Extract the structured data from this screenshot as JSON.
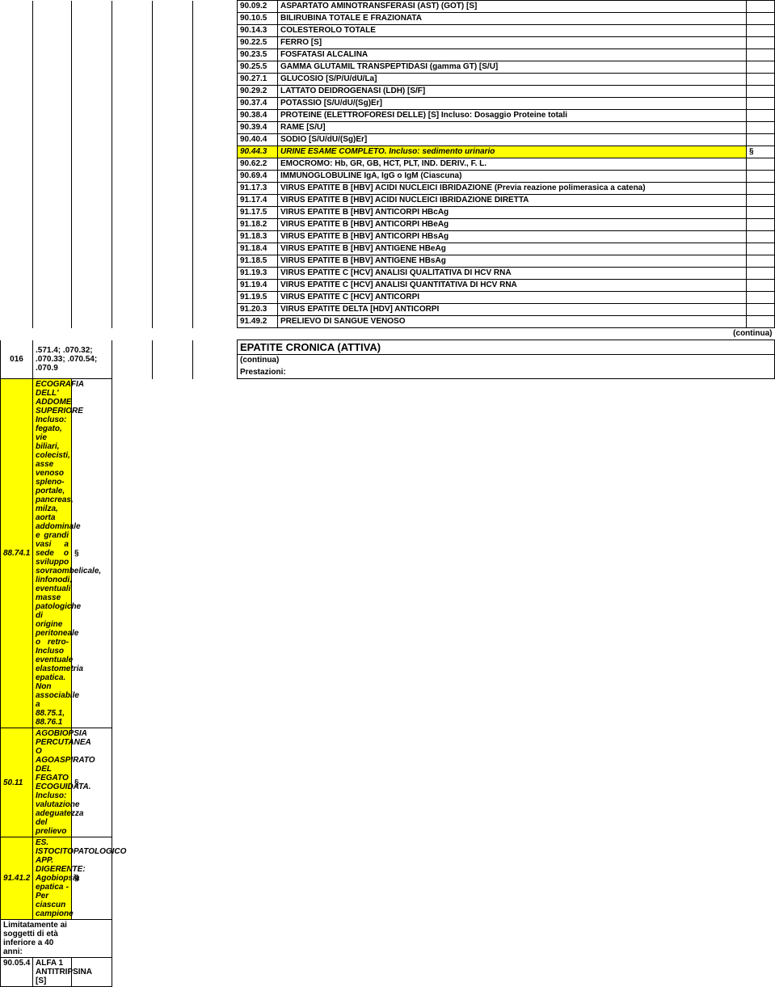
{
  "left": {
    "code016": "016",
    "refs": ".571.4; .070.32; .070.33; .070.54; .070.9"
  },
  "rows_top": [
    {
      "code": "90.09.2",
      "desc": "ASPARTATO AMINOTRANSFERASI (AST) (GOT) [S]",
      "hl": false,
      "it": false,
      "sec": ""
    },
    {
      "code": "90.10.5",
      "desc": "BILIRUBINA TOTALE E FRAZIONATA",
      "hl": false,
      "it": false,
      "sec": ""
    },
    {
      "code": "90.14.3",
      "desc": "COLESTEROLO TOTALE",
      "hl": false,
      "it": false,
      "sec": ""
    },
    {
      "code": "90.22.5",
      "desc": "FERRO [S]",
      "hl": false,
      "it": false,
      "sec": ""
    },
    {
      "code": "90.23.5",
      "desc": "FOSFATASI ALCALINA",
      "hl": false,
      "it": false,
      "sec": ""
    },
    {
      "code": "90.25.5",
      "desc": "GAMMA GLUTAMIL TRANSPEPTIDASI (gamma GT) [S/U]",
      "hl": false,
      "it": false,
      "sec": ""
    },
    {
      "code": "90.27.1",
      "desc": "GLUCOSIO [S/P/U/dU/La]",
      "hl": false,
      "it": false,
      "sec": ""
    },
    {
      "code": "90.29.2",
      "desc": "LATTATO DEIDROGENASI (LDH) [S/F]",
      "hl": false,
      "it": false,
      "sec": ""
    },
    {
      "code": "90.37.4",
      "desc": "POTASSIO [S/U/dU/(Sg)Er]",
      "hl": false,
      "it": false,
      "sec": ""
    },
    {
      "code": "90.38.4",
      "desc": "PROTEINE (ELETTROFORESI DELLE) [S] Incluso: Dosaggio Proteine totali",
      "hl": false,
      "it": false,
      "sec": ""
    },
    {
      "code": "90.39.4",
      "desc": "RAME [S/U]",
      "hl": false,
      "it": false,
      "sec": ""
    },
    {
      "code": "90.40.4",
      "desc": "SODIO [S/U/dU/(Sg)Er]",
      "hl": false,
      "it": false,
      "sec": ""
    },
    {
      "code": "90.44.3",
      "desc": "URINE ESAME COMPLETO. Incluso: sedimento urinario",
      "hl": true,
      "it": true,
      "sec": "§"
    },
    {
      "code": "90.62.2",
      "desc": "EMOCROMO:  Hb, GR, GB, HCT, PLT, IND. DERIV., F. L.",
      "hl": false,
      "it": false,
      "sec": ""
    },
    {
      "code": "90.69.4",
      "desc": "IMMUNOGLOBULINE IgA, IgG o IgM (Ciascuna)",
      "hl": false,
      "it": false,
      "sec": ""
    },
    {
      "code": "91.17.3",
      "desc": "VIRUS EPATITE B [HBV] ACIDI NUCLEICI IBRIDAZIONE (Previa reazione polimerasica a catena)",
      "hl": false,
      "it": false,
      "sec": ""
    },
    {
      "code": "91.17.4",
      "desc": "VIRUS EPATITE B [HBV] ACIDI NUCLEICI IBRIDAZIONE DIRETTA",
      "hl": false,
      "it": false,
      "sec": ""
    },
    {
      "code": "91.17.5",
      "desc": "VIRUS EPATITE B [HBV] ANTICORPI HBcAg",
      "hl": false,
      "it": false,
      "sec": ""
    },
    {
      "code": "91.18.2",
      "desc": "VIRUS EPATITE B [HBV] ANTICORPI HBeAg",
      "hl": false,
      "it": false,
      "sec": ""
    },
    {
      "code": "91.18.3",
      "desc": "VIRUS EPATITE B [HBV] ANTICORPI HBsAg",
      "hl": false,
      "it": false,
      "sec": ""
    },
    {
      "code": "91.18.4",
      "desc": "VIRUS EPATITE B [HBV] ANTIGENE HBeAg",
      "hl": false,
      "it": false,
      "sec": ""
    },
    {
      "code": "91.18.5",
      "desc": "VIRUS EPATITE B [HBV] ANTIGENE HBsAg",
      "hl": false,
      "it": false,
      "sec": ""
    },
    {
      "code": "91.19.3",
      "desc": "VIRUS EPATITE C [HCV] ANALISI QUALITATIVA DI HCV RNA",
      "hl": false,
      "it": false,
      "sec": ""
    },
    {
      "code": "91.19.4",
      "desc": "VIRUS EPATITE C [HCV] ANALISI QUANTITATIVA DI HCV RNA",
      "hl": false,
      "it": false,
      "sec": ""
    },
    {
      "code": "91.19.5",
      "desc": "VIRUS EPATITE C [HCV] ANTICORPI",
      "hl": false,
      "it": false,
      "sec": ""
    },
    {
      "code": "91.20.3",
      "desc": "VIRUS EPATITE DELTA [HDV] ANTICORPI",
      "hl": false,
      "it": false,
      "sec": ""
    },
    {
      "code": "91.49.2",
      "desc": "PRELIEVO DI SANGUE VENOSO",
      "hl": false,
      "it": false,
      "sec": ""
    }
  ],
  "continua1": "(continua)",
  "title": "EPATITE CRONICA (ATTIVA)",
  "continua2": "(continua)",
  "prestazioni": "Prestazioni:",
  "rows_yellow": [
    {
      "code": "88.74.1",
      "desc": "ECOGRAFIA DELL' ADDOME SUPERIORE Incluso: fegato, vie biliari, colecisti, asse venoso spleno-portale, pancreas, milza, aorta addominale e grandi vasi a sede o sviluppo sovraombelicale, linfonodi, eventuali masse patologiche di origine peritoneale o retro- Incluso eventuale elastometria epatica. Non associabile a 88.75.1, 88.76.1",
      "sec": "§"
    },
    {
      "code": "50.11",
      "desc": "AGOBIOPSIA PERCUTANEA O AGOASPIRATO DEL FEGATO ECOGUIDATA. Incluso: valutazione adeguatezza del prelievo",
      "sec": "§"
    },
    {
      "code": "91.41.2",
      "desc": "ES. ISTOCITOPATOLOGICO APP. DIGERENTE: Agobiopsia epatica - Per ciascun campione",
      "sec": "§"
    }
  ],
  "limitatamente": "Limitatamente ai soggetti di età inferiore a 40 anni:",
  "last_row": {
    "code": "90.05.4",
    "desc": "ALFA 1 ANTITRIPSINA [S]"
  }
}
